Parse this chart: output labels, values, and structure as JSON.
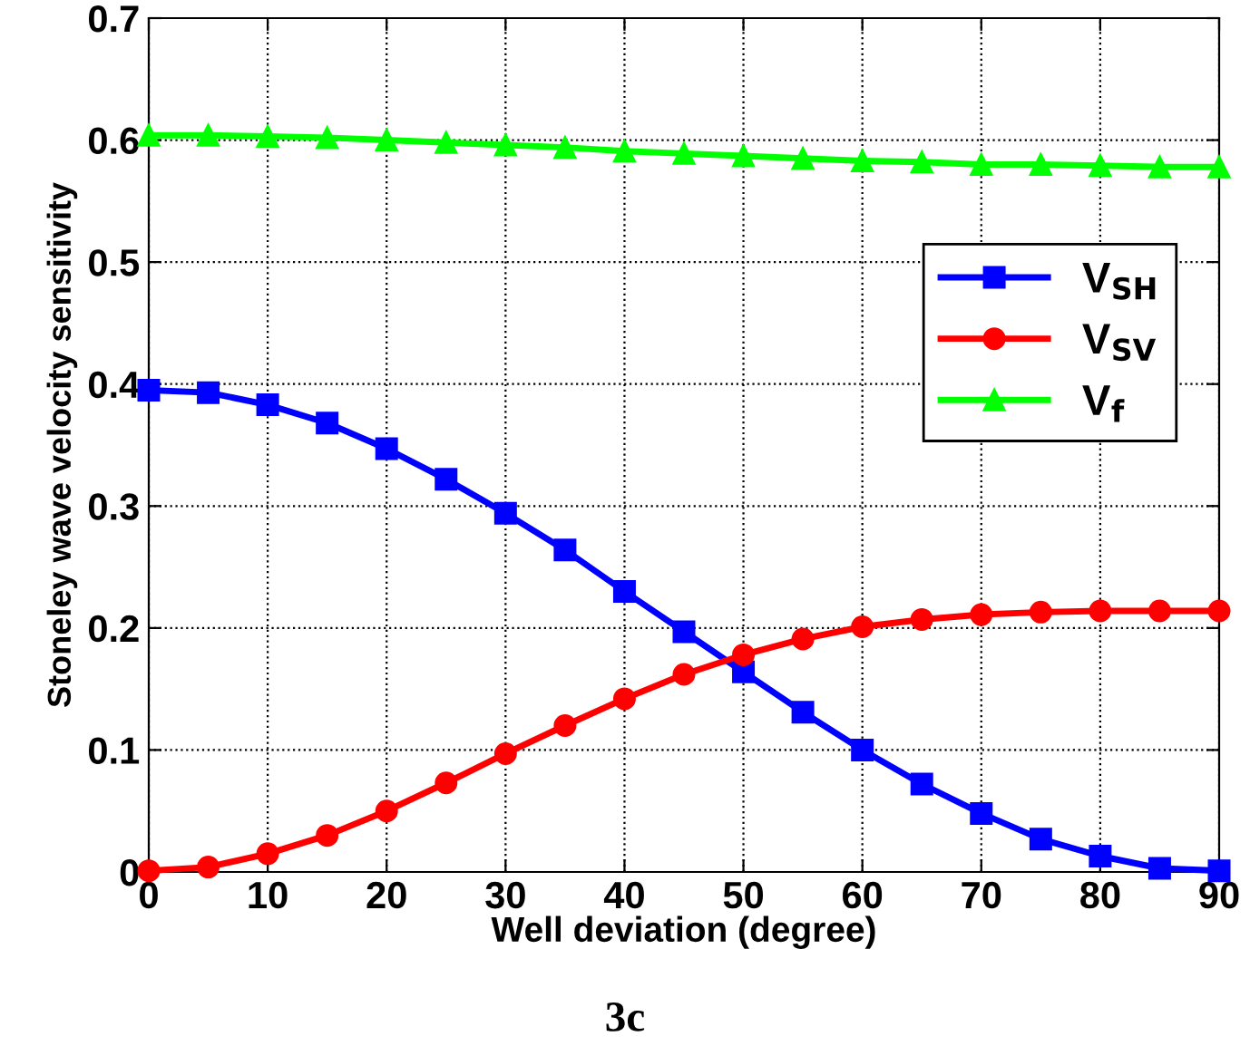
{
  "chart_data": {
    "type": "line",
    "xlabel": "Well deviation (degree)",
    "ylabel": "Stoneley wave velocity sensitivity",
    "x": [
      0,
      5,
      10,
      15,
      20,
      25,
      30,
      35,
      40,
      45,
      50,
      55,
      60,
      65,
      70,
      75,
      80,
      85,
      90
    ],
    "series": [
      {
        "name": "V$_{SH}$",
        "color": "#0000ff",
        "marker": "square",
        "values": [
          0.395,
          0.393,
          0.383,
          0.368,
          0.347,
          0.322,
          0.294,
          0.264,
          0.23,
          0.197,
          0.164,
          0.131,
          0.1,
          0.072,
          0.048,
          0.027,
          0.013,
          0.003,
          0.001
        ]
      },
      {
        "name": "V$_{SV}$",
        "color": "#ff0000",
        "marker": "circle",
        "values": [
          0.001,
          0.004,
          0.015,
          0.03,
          0.05,
          0.073,
          0.097,
          0.12,
          0.142,
          0.162,
          0.178,
          0.191,
          0.201,
          0.207,
          0.211,
          0.213,
          0.214,
          0.214,
          0.214
        ]
      },
      {
        "name": "V$_{f}$",
        "color": "#00ff00",
        "marker": "triangle",
        "values": [
          0.604,
          0.604,
          0.603,
          0.602,
          0.6,
          0.598,
          0.596,
          0.594,
          0.591,
          0.589,
          0.587,
          0.585,
          0.583,
          0.582,
          0.58,
          0.58,
          0.579,
          0.578,
          0.578
        ]
      }
    ],
    "xlim": [
      0,
      90
    ],
    "xticks": [
      0,
      10,
      20,
      30,
      40,
      50,
      60,
      70,
      80,
      90
    ],
    "ylim": [
      0,
      0.7
    ],
    "yticks": [
      0,
      0.1,
      0.2,
      0.3,
      0.4,
      0.5,
      0.6,
      0.7
    ],
    "grid": true,
    "legend": "right",
    "line_style": "solid",
    "annotations": [
      "3c"
    ]
  }
}
